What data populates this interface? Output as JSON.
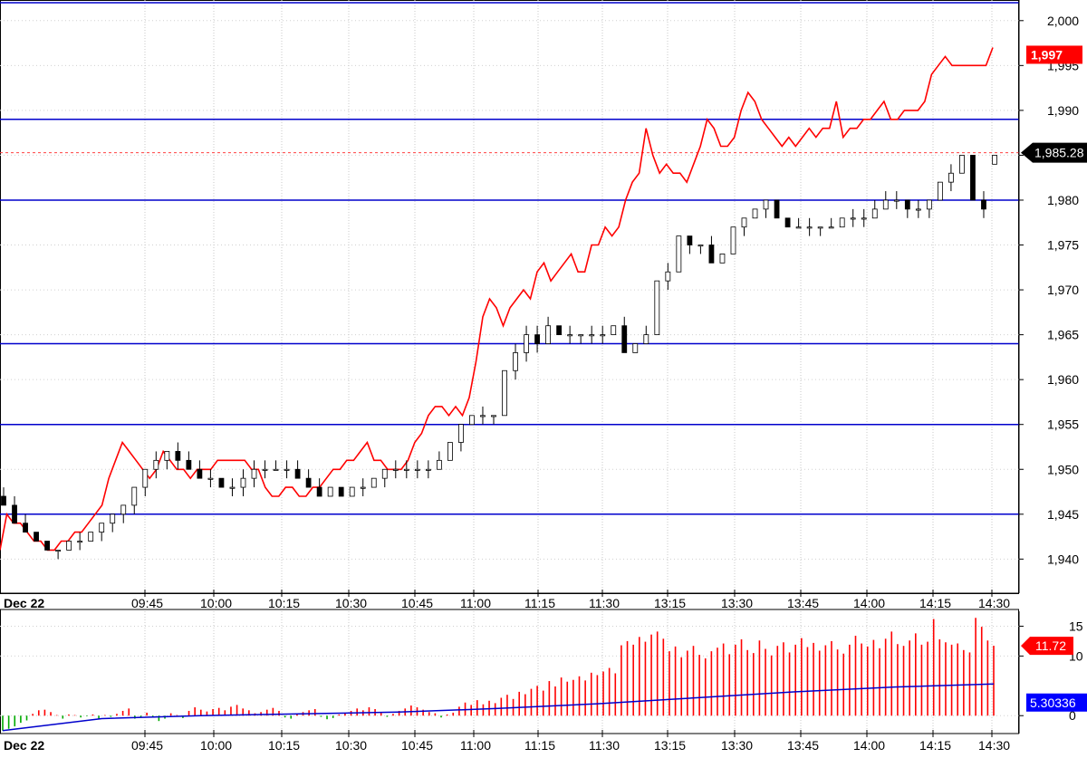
{
  "chart_data": [
    {
      "type": "candlestick+line",
      "title": "",
      "date_label": "Dec 22",
      "x_tick_labels": [
        "09:45",
        "10:00",
        "10:15",
        "10:30",
        "10:45",
        "11:00",
        "11:15",
        "11:30",
        "13:15",
        "13:30",
        "13:45",
        "14:00",
        "14:15",
        "14:30"
      ],
      "y_ticks": [
        1940,
        1945,
        1950,
        1955,
        1960,
        1965,
        1970,
        1975,
        1980,
        1985,
        1990,
        1995,
        2000
      ],
      "y_tick_labels": [
        "1,940",
        "1,945",
        "1,950",
        "1,955",
        "1,960",
        "1,965",
        "1,970",
        "1,975",
        "1,980",
        "1,985",
        "1,990",
        "1,995",
        "2,000"
      ],
      "ylim": [
        1936.2,
        2002.3
      ],
      "grid": true,
      "horizontal_levels": [
        1945,
        1955,
        1964,
        1980,
        1989,
        2002
      ],
      "reference_line": 1985.28,
      "last_price_labels": {
        "line": "1,997",
        "candle": "1,985.28"
      },
      "colors": {
        "line": "#ff0000",
        "levels": "#0000cc",
        "reference": "#ff4040",
        "candle_up": "#ffffff",
        "candle_down": "#000000"
      },
      "series": [
        {
          "kind": "line",
          "values": [
            1941,
            1945,
            1944,
            1944,
            1943,
            1942,
            1942,
            1941,
            1941,
            1942,
            1942,
            1943,
            1943,
            1944,
            1945,
            1946,
            1949,
            1951,
            1953,
            1952,
            1951,
            1950,
            1949,
            1950,
            1952,
            1951,
            1950,
            1950,
            1949,
            1950,
            1950,
            1950,
            1951,
            1951,
            1951,
            1951,
            1951,
            1950,
            1950,
            1948,
            1947,
            1947,
            1948,
            1948,
            1947,
            1947,
            1948,
            1948,
            1949,
            1950,
            1950,
            1951,
            1951,
            1952,
            1953,
            1951,
            1951,
            1950,
            1950,
            1950,
            1951,
            1953,
            1954,
            1956,
            1957,
            1957,
            1956,
            1957,
            1956,
            1958,
            1962,
            1967,
            1969,
            1968,
            1966,
            1968,
            1969,
            1970,
            1969,
            1972,
            1973,
            1971,
            1972,
            1973,
            1974,
            1972,
            1972,
            1975,
            1975,
            1977,
            1976,
            1977,
            1980,
            1982,
            1983,
            1988,
            1985,
            1983,
            1984,
            1983,
            1983,
            1982,
            1984,
            1986,
            1989,
            1988,
            1986,
            1986,
            1987,
            1990,
            1992,
            1991,
            1989,
            1988,
            1987,
            1986,
            1987,
            1986,
            1987,
            1988,
            1987,
            1988,
            1988,
            1991,
            1987,
            1988,
            1988,
            1989,
            1989,
            1990,
            1991,
            1989,
            1989,
            1990,
            1990,
            1990,
            1991,
            1994,
            1995,
            1996,
            1995,
            1995,
            1995,
            1995,
            1995,
            1995,
            1997
          ]
        },
        {
          "kind": "candlestick",
          "ohlc": [
            [
              1947,
              1948,
              1946,
              1946
            ],
            [
              1946,
              1947,
              1944,
              1944
            ],
            [
              1944,
              1945,
              1943,
              1943
            ],
            [
              1943,
              1943,
              1942,
              1942
            ],
            [
              1942,
              1942,
              1941,
              1941
            ],
            [
              1941,
              1941,
              1940,
              1941
            ],
            [
              1941,
              1942,
              1941,
              1942
            ],
            [
              1942,
              1943,
              1941,
              1942
            ],
            [
              1942,
              1943,
              1942,
              1943
            ],
            [
              1943,
              1944,
              1942,
              1944
            ],
            [
              1944,
              1945,
              1943,
              1945
            ],
            [
              1945,
              1946,
              1944,
              1946
            ],
            [
              1946,
              1948,
              1945,
              1948
            ],
            [
              1948,
              1950,
              1947,
              1950
            ],
            [
              1950,
              1952,
              1949,
              1951
            ],
            [
              1951,
              1952,
              1950,
              1952
            ],
            [
              1952,
              1953,
              1950,
              1951
            ],
            [
              1951,
              1952,
              1950,
              1950
            ],
            [
              1950,
              1951,
              1949,
              1949
            ],
            [
              1949,
              1950,
              1948,
              1949
            ],
            [
              1949,
              1949,
              1948,
              1948
            ],
            [
              1948,
              1949,
              1947,
              1948
            ],
            [
              1948,
              1950,
              1947,
              1949
            ],
            [
              1949,
              1951,
              1948,
              1950
            ],
            [
              1950,
              1951,
              1949,
              1950
            ],
            [
              1950,
              1951,
              1950,
              1950
            ],
            [
              1950,
              1951,
              1949,
              1950
            ],
            [
              1950,
              1951,
              1949,
              1949
            ],
            [
              1949,
              1950,
              1948,
              1948
            ],
            [
              1948,
              1949,
              1947,
              1947
            ],
            [
              1947,
              1948,
              1947,
              1948
            ],
            [
              1948,
              1948,
              1947,
              1947
            ],
            [
              1947,
              1948,
              1947,
              1948
            ],
            [
              1948,
              1949,
              1947,
              1948
            ],
            [
              1948,
              1949,
              1948,
              1949
            ],
            [
              1949,
              1950,
              1948,
              1950
            ],
            [
              1950,
              1951,
              1949,
              1950
            ],
            [
              1950,
              1951,
              1949,
              1950
            ],
            [
              1950,
              1951,
              1949,
              1950
            ],
            [
              1950,
              1951,
              1949,
              1950
            ],
            [
              1950,
              1952,
              1950,
              1951
            ],
            [
              1951,
              1953,
              1951,
              1953
            ],
            [
              1953,
              1955,
              1952,
              1955
            ],
            [
              1955,
              1956,
              1955,
              1956
            ],
            [
              1956,
              1957,
              1955,
              1956
            ],
            [
              1956,
              1956,
              1955,
              1956
            ],
            [
              1956,
              1961,
              1956,
              1961
            ],
            [
              1961,
              1964,
              1960,
              1963
            ],
            [
              1963,
              1966,
              1962,
              1965
            ],
            [
              1965,
              1966,
              1963,
              1964
            ],
            [
              1964,
              1967,
              1964,
              1966
            ],
            [
              1966,
              1966,
              1965,
              1965
            ],
            [
              1965,
              1966,
              1964,
              1965
            ],
            [
              1965,
              1965,
              1964,
              1965
            ],
            [
              1965,
              1966,
              1964,
              1965
            ],
            [
              1965,
              1966,
              1964,
              1965
            ],
            [
              1965,
              1966,
              1965,
              1966
            ],
            [
              1966,
              1967,
              1963,
              1963
            ],
            [
              1963,
              1964,
              1963,
              1964
            ],
            [
              1964,
              1966,
              1964,
              1965
            ],
            [
              1965,
              1971,
              1965,
              1971
            ],
            [
              1971,
              1973,
              1970,
              1972
            ],
            [
              1972,
              1976,
              1972,
              1976
            ],
            [
              1976,
              1976,
              1974,
              1975
            ],
            [
              1975,
              1975,
              1974,
              1975
            ],
            [
              1975,
              1976,
              1973,
              1973
            ],
            [
              1973,
              1974,
              1973,
              1974
            ],
            [
              1974,
              1977,
              1974,
              1977
            ],
            [
              1977,
              1978,
              1976,
              1978
            ],
            [
              1978,
              1979,
              1978,
              1979
            ],
            [
              1979,
              1980,
              1978,
              1980
            ],
            [
              1980,
              1980,
              1978,
              1978
            ],
            [
              1978,
              1978,
              1977,
              1977
            ],
            [
              1977,
              1978,
              1977,
              1977
            ],
            [
              1977,
              1978,
              1976,
              1977
            ],
            [
              1977,
              1977,
              1976,
              1977
            ],
            [
              1977,
              1978,
              1977,
              1977
            ],
            [
              1977,
              1978,
              1977,
              1978
            ],
            [
              1978,
              1979,
              1977,
              1978
            ],
            [
              1978,
              1979,
              1977,
              1978
            ],
            [
              1978,
              1980,
              1978,
              1979
            ],
            [
              1979,
              1981,
              1979,
              1980
            ],
            [
              1980,
              1981,
              1979,
              1980
            ],
            [
              1980,
              1980,
              1978,
              1979
            ],
            [
              1979,
              1980,
              1978,
              1979
            ],
            [
              1979,
              1980,
              1978,
              1980
            ],
            [
              1980,
              1982,
              1980,
              1982
            ],
            [
              1982,
              1984,
              1981,
              1983
            ],
            [
              1983,
              1985,
              1983,
              1985
            ],
            [
              1985,
              1985,
              1980,
              1980
            ],
            [
              1980,
              1981,
              1978,
              1979
            ],
            [
              1984,
              1985,
              1984,
              1985
            ]
          ]
        }
      ]
    },
    {
      "type": "bar",
      "title": "",
      "date_label": "Dec 22",
      "x_tick_labels": [
        "09:45",
        "10:00",
        "10:15",
        "10:30",
        "10:45",
        "11:00",
        "11:15",
        "11:30",
        "13:15",
        "13:30",
        "13:45",
        "14:00",
        "14:15",
        "14:30"
      ],
      "y_ticks": [
        0,
        10,
        15
      ],
      "y_tick_labels": [
        "0",
        "10",
        "15"
      ],
      "ylim": [
        -3,
        17.5
      ],
      "last_labels": {
        "bar": "11.72",
        "average": "5.30336"
      },
      "colors": {
        "positive": "#ff0000",
        "negative": "#00aa00",
        "average": "#0000cc"
      },
      "series": [
        {
          "name": "",
          "kind": "bar",
          "values": [
            -2.5,
            -2.2,
            -1.8,
            -1.2,
            -0.8,
            0.3,
            0.9,
            1.0,
            0.6,
            0.1,
            -0.5,
            0.2,
            0.1,
            -0.3,
            -0.1,
            0.2,
            -0.6,
            0.1,
            -0.2,
            0.3,
            0.8,
            1.2,
            -0.5,
            -0.2,
            0.5,
            -0.3,
            -0.9,
            -0.5,
            0.4,
            0.1,
            -0.4,
            0.8,
            1.4,
            1.0,
            0.7,
            1.1,
            1.3,
            0.9,
            1.5,
            1.8,
            1.2,
            0.9,
            0.4,
            0.6,
            1.0,
            1.3,
            0.8,
            -0.3,
            -0.5,
            0.3,
            0.6,
            0.9,
            1.1,
            -0.2,
            -0.6,
            -0.4,
            0.2,
            0.5,
            0.8,
            1.2,
            0.9,
            1.4,
            1.1,
            0.6,
            -0.2,
            0.3,
            0.8,
            1.2,
            1.7,
            1.4,
            1.0,
            0.6,
            0.4,
            -0.3,
            0.2,
            0.5,
            1.5,
            2.2,
            1.8,
            2.6,
            1.9,
            2.5,
            2.1,
            3.0,
            3.5,
            2.8,
            4.0,
            3.6,
            4.5,
            5.0,
            4.2,
            5.8,
            4.9,
            6.4,
            5.7,
            6.0,
            6.6,
            5.9,
            7.2,
            6.8,
            7.4,
            8.0,
            7.1,
            11.8,
            12.5,
            11.9,
            13.2,
            12.4,
            13.6,
            14.1,
            12.9,
            10.8,
            11.6,
            9.8,
            10.9,
            11.7,
            10.2,
            9.6,
            10.8,
            11.4,
            12.1,
            10.3,
            11.9,
            12.8,
            11.0,
            10.5,
            12.6,
            11.2,
            10.1,
            11.7,
            12.3,
            10.6,
            11.9,
            13.0,
            11.5,
            12.2,
            10.9,
            11.8,
            12.5,
            11.1,
            10.4,
            11.9,
            13.4,
            12.1,
            11.6,
            12.7,
            11.3,
            12.9,
            14.1,
            12.0,
            11.7,
            12.6,
            13.8,
            11.9,
            12.4,
            16.2,
            12.8,
            12.3,
            11.9,
            12.1,
            11.0,
            10.6,
            16.4,
            14.9,
            12.6,
            11.72
          ]
        },
        {
          "name": "",
          "kind": "line",
          "values": [
            -2.5,
            -0.5,
            0.0,
            0.3,
            0.6,
            1.2,
            2.0,
            3.0,
            4.0,
            4.8,
            5.30336
          ]
        }
      ]
    }
  ]
}
